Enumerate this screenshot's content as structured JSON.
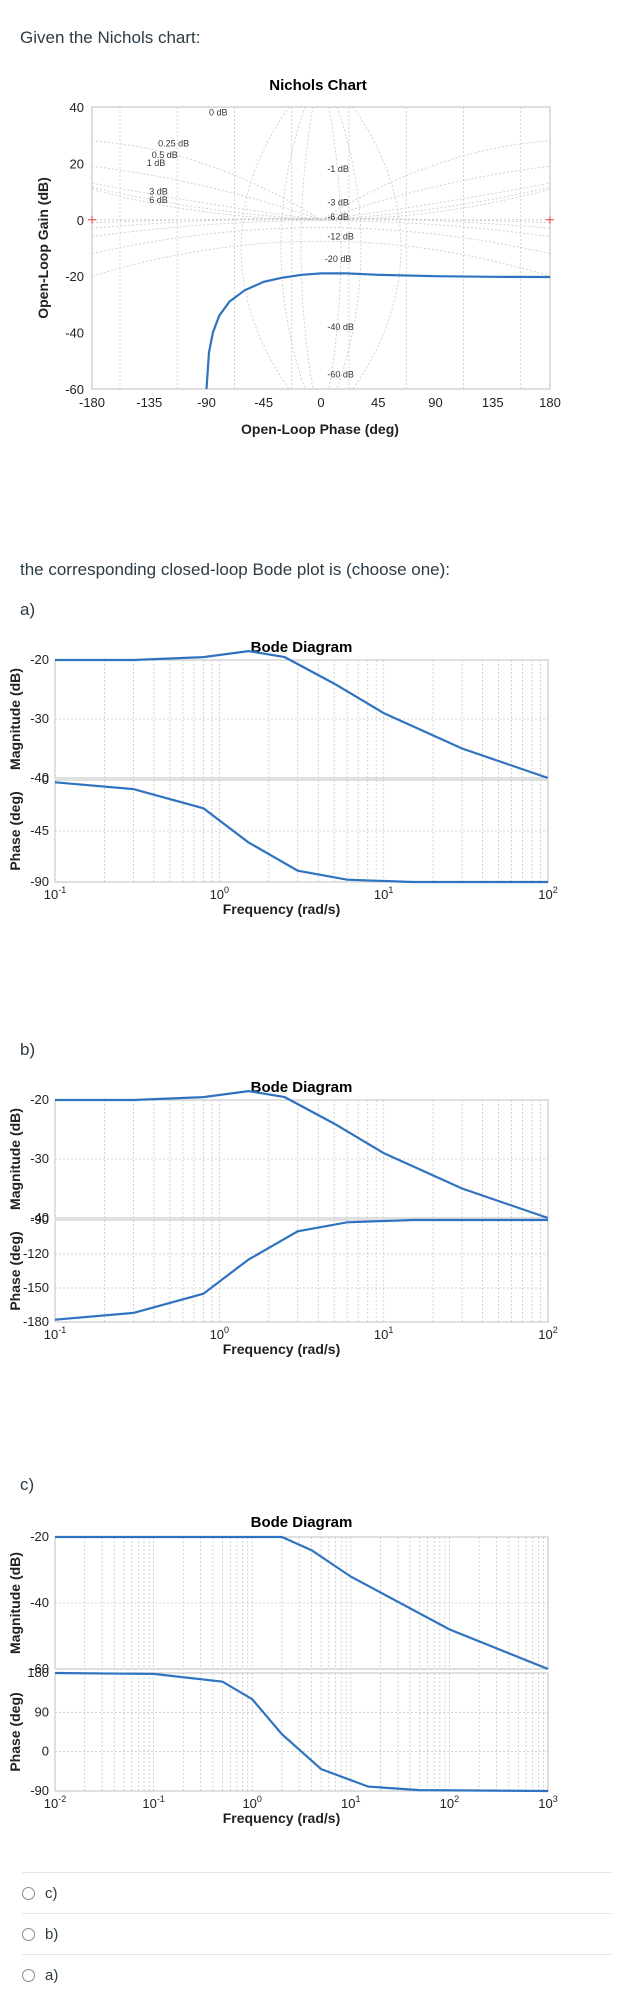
{
  "question": {
    "intro": "Given the Nichols chart:",
    "prompt": "the corresponding closed-loop Bode plot is (choose one):",
    "option_labels": [
      "a)",
      "b)",
      "c)"
    ]
  },
  "chart_data": [
    {
      "type": "line",
      "title": "Nichols Chart",
      "xlabel": "Open-Loop Phase (deg)",
      "ylabel": "Open-Loop Gain (dB)",
      "x_ticks": [
        "-180",
        "-135",
        "-90",
        "-45",
        "0",
        "45",
        "90",
        "135",
        "180"
      ],
      "y_ticks": [
        "40",
        "20",
        "0",
        "-20",
        "-40",
        "-60"
      ],
      "xlim": [
        -180,
        180
      ],
      "ylim": [
        -60,
        40
      ],
      "grid_labels": [
        "0 dB",
        "0.25 dB",
        "0.5 dB",
        "1 dB",
        "3 dB",
        "6 dB",
        "-1 dB",
        "-3 dB",
        "-6 dB",
        "-12 dB",
        "-20 dB",
        "-40 dB",
        "-60 dB"
      ],
      "series": [
        {
          "x": [
            -90,
            -88,
            -85,
            -80,
            -72,
            -60,
            -45,
            -30,
            -15,
            0,
            20,
            45,
            90,
            135,
            180
          ],
          "y": [
            -60,
            -47,
            -40,
            -34,
            -29,
            -25,
            -22,
            -20.5,
            -19.5,
            -19,
            -19,
            -19.5,
            -20,
            -20.2,
            -20.3
          ]
        }
      ]
    },
    {
      "type": "line",
      "title": "Bode Diagram",
      "xlabel": "Frequency (rad/s)",
      "mag_label": "Magnitude (dB)",
      "phase_label": "Phase (deg)",
      "mag_ticks": [
        "-20",
        "-30",
        "-40"
      ],
      "phase_ticks": [
        "0",
        "-45",
        "-90"
      ],
      "x_ticks": [
        "10",
        "10",
        "10",
        "10"
      ],
      "x_exps": [
        "-1",
        "0",
        "1",
        "2"
      ],
      "mag": {
        "x": [
          0.1,
          0.3,
          0.8,
          1.5,
          2.5,
          5,
          10,
          30,
          100
        ],
        "y": [
          -20,
          -20,
          -19.5,
          -18.5,
          -19.5,
          -24,
          -29,
          -35,
          -40
        ]
      },
      "phase": {
        "x": [
          0.1,
          0.3,
          0.8,
          1.5,
          3,
          6,
          15,
          40,
          100
        ],
        "y": [
          -2,
          -8,
          -25,
          -55,
          -80,
          -88,
          -90,
          -90,
          -90
        ]
      }
    },
    {
      "type": "line",
      "title": "Bode Diagram",
      "xlabel": "Frequency (rad/s)",
      "mag_label": "Magnitude (dB)",
      "phase_label": "Phase (deg)",
      "mag_ticks": [
        "-20",
        "-30",
        "-40"
      ],
      "phase_ticks": [
        "-90",
        "-120",
        "-150",
        "-180"
      ],
      "x_ticks": [
        "10",
        "10",
        "10",
        "10"
      ],
      "x_exps": [
        "-1",
        "0",
        "1",
        "2"
      ],
      "mag": {
        "x": [
          0.1,
          0.3,
          0.8,
          1.5,
          2.5,
          5,
          10,
          30,
          100
        ],
        "y": [
          -20,
          -20,
          -19.5,
          -18.5,
          -19.5,
          -24,
          -29,
          -35,
          -40
        ]
      },
      "phase": {
        "x": [
          0.1,
          0.3,
          0.8,
          1.5,
          3,
          6,
          15,
          40,
          100
        ],
        "y": [
          -178,
          -172,
          -155,
          -125,
          -100,
          -92,
          -90,
          -90,
          -90
        ]
      }
    },
    {
      "type": "line",
      "title": "Bode Diagram",
      "xlabel": "Frequency (rad/s)",
      "mag_label": "Magnitude (dB)",
      "phase_label": "Phase (deg)",
      "mag_ticks": [
        "-20",
        "-40",
        "-60"
      ],
      "phase_ticks": [
        "180",
        "90",
        "0",
        "-90"
      ],
      "x_ticks": [
        "10",
        "10",
        "10",
        "10",
        "10",
        "10"
      ],
      "x_exps": [
        "-2",
        "-1",
        "0",
        "1",
        "2",
        "3"
      ],
      "mag": {
        "x": [
          0.01,
          0.1,
          1,
          2,
          4,
          10,
          100,
          1000
        ],
        "y": [
          -20,
          -20,
          -20,
          -20,
          -24,
          -32,
          -48,
          -60
        ]
      },
      "phase": {
        "x": [
          0.01,
          0.1,
          0.5,
          1,
          2,
          5,
          15,
          50,
          1000
        ],
        "y": [
          180,
          178,
          160,
          120,
          40,
          -40,
          -80,
          -88,
          -90
        ]
      }
    }
  ],
  "choices": [
    "c)",
    "b)",
    "a)"
  ]
}
